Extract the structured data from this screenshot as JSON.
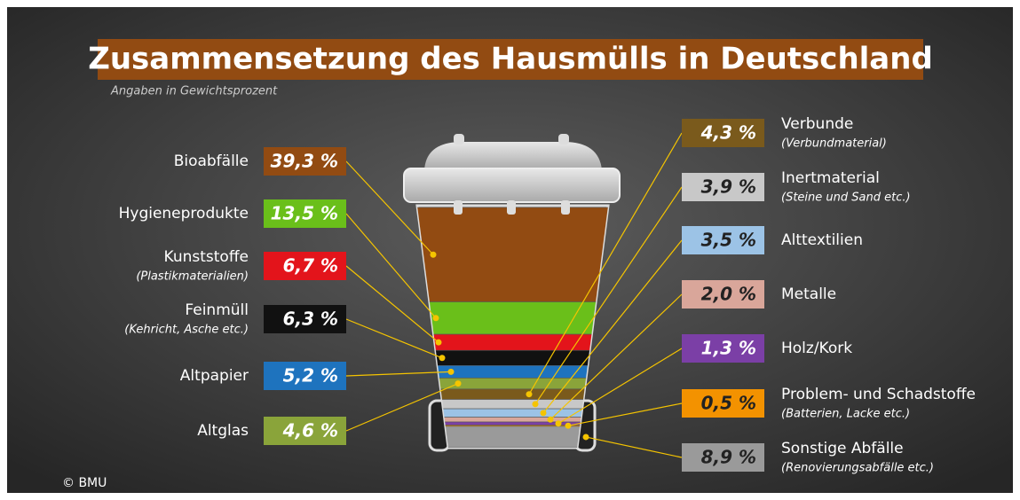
{
  "chart_data": {
    "type": "bin",
    "title": "Zusammensetzung des Hausmülls in Deutschland",
    "subtitle": "Angaben in Gewichtsprozent",
    "source": "© BMU",
    "categories": [
      "Bioabfälle",
      "Hygieneprodukte",
      "Kunststoffe",
      "Feinmüll",
      "Altpapier",
      "Altglas",
      "Verbunde",
      "Inertmaterial",
      "Alttextilien",
      "Metalle",
      "Holz/Kork",
      "Problem- und Schadstoffe",
      "Sonstige Abfälle"
    ],
    "sublabels": [
      null,
      null,
      "(Plastikmaterialien)",
      "(Kehricht, Asche etc.)",
      null,
      null,
      "(Verbundmaterial)",
      "(Steine und Sand etc.)",
      null,
      null,
      null,
      "(Batterien, Lacke etc.)",
      "(Renovierungsabfälle etc.)"
    ],
    "values": [
      39.3,
      13.5,
      6.7,
      6.3,
      5.2,
      4.6,
      4.3,
      3.9,
      3.5,
      2.0,
      1.3,
      0.5,
      8.9
    ],
    "value_labels": [
      "39,3 %",
      "13,5 %",
      "6,7 %",
      "6,3 %",
      "5,2 %",
      "4,6 %",
      "4,3 %",
      "3,9 %",
      "3,5 %",
      "2,0 %",
      "1,3 %",
      "0,5 %",
      "8,9 %"
    ],
    "colors": [
      "#924b12",
      "#6abf1a",
      "#e3141b",
      "#111111",
      "#1e73be",
      "#8aa43a",
      "#7a5a1c",
      "#c8c8c8",
      "#9cc3e6",
      "#d9a69a",
      "#7b3fa6",
      "#f39200",
      "#9a9a9a"
    ]
  }
}
